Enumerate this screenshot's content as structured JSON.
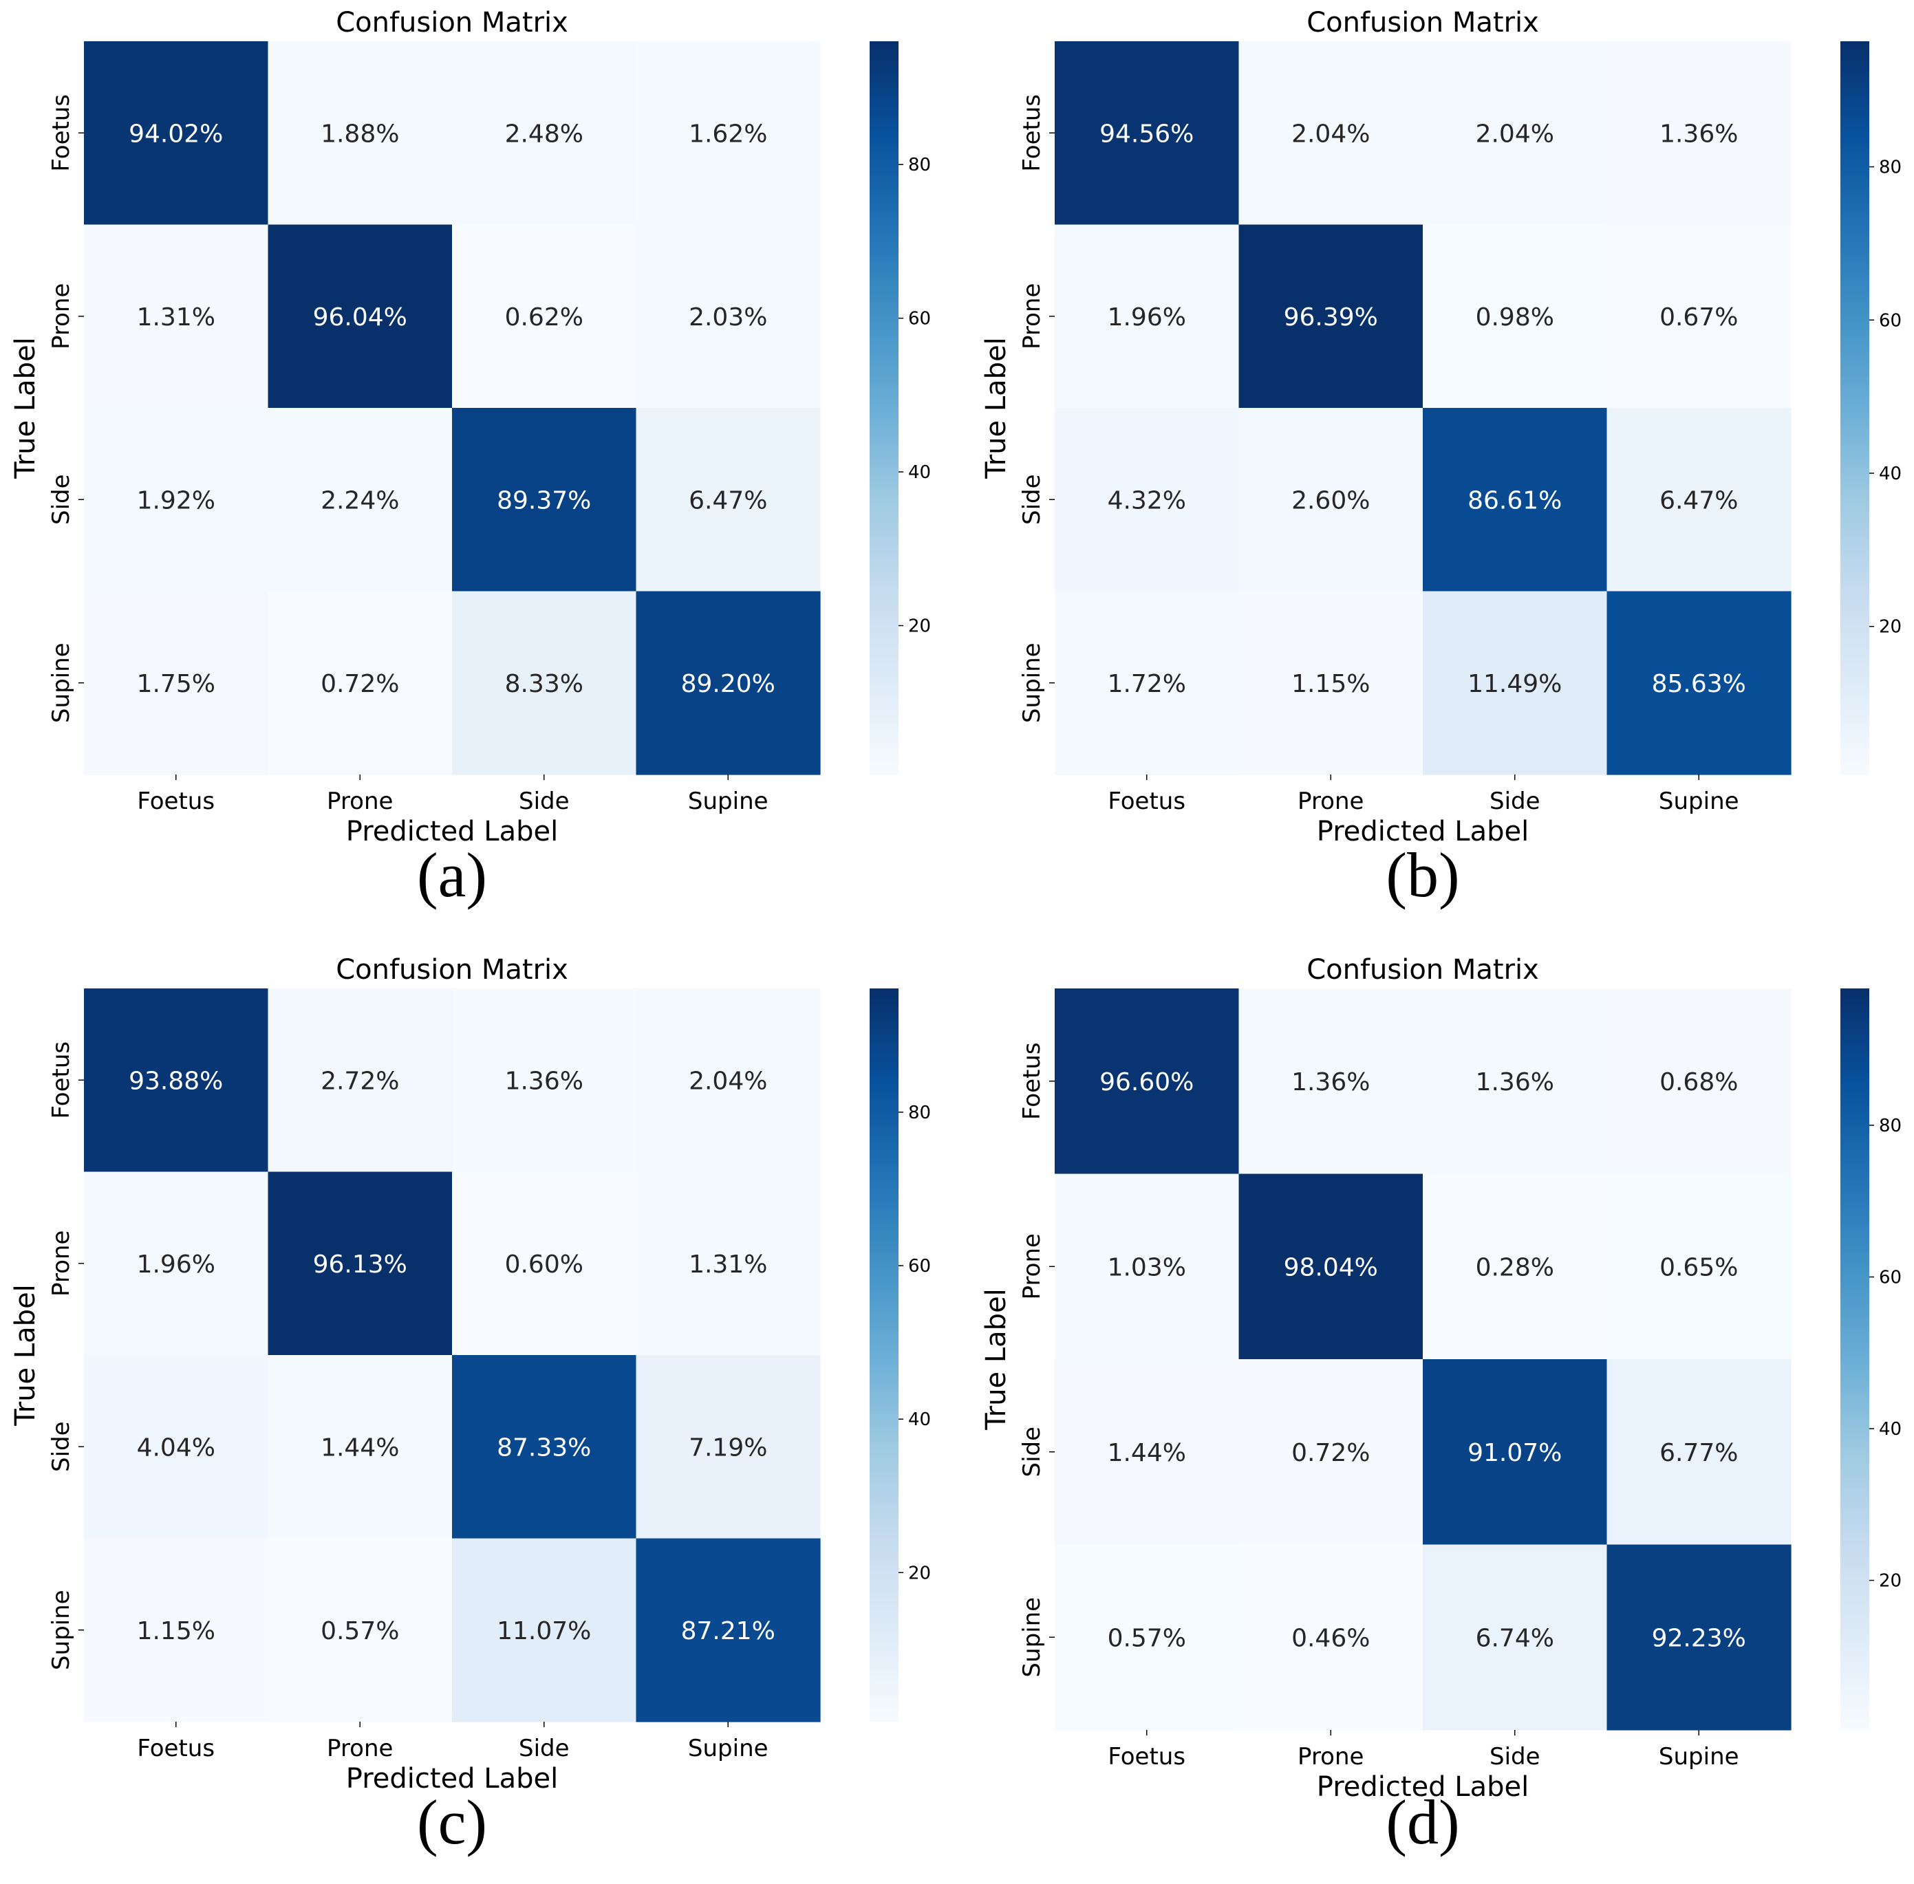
{
  "chart_data": [
    {
      "type": "heatmap",
      "panel": "(a)",
      "title": "Confusion Matrix",
      "xlabel": "Predicted Label",
      "ylabel": "True Label",
      "row_labels": [
        "Foetus",
        "Prone",
        "Side",
        "Supine"
      ],
      "col_labels": [
        "Foetus",
        "Prone",
        "Side",
        "Supine"
      ],
      "values": [
        [
          94.02,
          1.88,
          2.48,
          1.62
        ],
        [
          1.31,
          96.04,
          0.62,
          2.03
        ],
        [
          1.92,
          2.24,
          89.37,
          6.47
        ],
        [
          1.75,
          0.72,
          8.33,
          89.2
        ]
      ],
      "cell_text": [
        [
          "94.02%",
          "1.88%",
          "2.48%",
          "1.62%"
        ],
        [
          "1.31%",
          "96.04%",
          "0.62%",
          "2.03%"
        ],
        [
          "1.92%",
          "2.24%",
          "89.37%",
          "6.47%"
        ],
        [
          "1.75%",
          "0.72%",
          "8.33%",
          "89.20%"
        ]
      ],
      "colorbar": {
        "cmap": "Blues",
        "vmin": 0.62,
        "vmax": 96.04,
        "ticks": [
          20,
          40,
          60,
          80
        ]
      }
    },
    {
      "type": "heatmap",
      "panel": "(b)",
      "title": "Confusion Matrix",
      "xlabel": "Predicted Label",
      "ylabel": "True Label",
      "row_labels": [
        "Foetus",
        "Prone",
        "Side",
        "Supine"
      ],
      "col_labels": [
        "Foetus",
        "Prone",
        "Side",
        "Supine"
      ],
      "values": [
        [
          94.56,
          2.04,
          2.04,
          1.36
        ],
        [
          1.96,
          96.39,
          0.98,
          0.67
        ],
        [
          4.32,
          2.6,
          86.61,
          6.47
        ],
        [
          1.72,
          1.15,
          11.49,
          85.63
        ]
      ],
      "cell_text": [
        [
          "94.56%",
          "2.04%",
          "2.04%",
          "1.36%"
        ],
        [
          "1.96%",
          "96.39%",
          "0.98%",
          "0.67%"
        ],
        [
          "4.32%",
          "2.60%",
          "86.61%",
          "6.47%"
        ],
        [
          "1.72%",
          "1.15%",
          "11.49%",
          "85.63%"
        ]
      ],
      "colorbar": {
        "cmap": "Blues",
        "vmin": 0.67,
        "vmax": 96.39,
        "ticks": [
          20,
          40,
          60,
          80
        ]
      }
    },
    {
      "type": "heatmap",
      "panel": "(c)",
      "title": "Confusion Matrix",
      "xlabel": "Predicted Label",
      "ylabel": "True Label",
      "row_labels": [
        "Foetus",
        "Prone",
        "Side",
        "Supine"
      ],
      "col_labels": [
        "Foetus",
        "Prone",
        "Side",
        "Supine"
      ],
      "values": [
        [
          93.88,
          2.72,
          1.36,
          2.04
        ],
        [
          1.96,
          96.13,
          0.6,
          1.31
        ],
        [
          4.04,
          1.44,
          87.33,
          7.19
        ],
        [
          1.15,
          0.57,
          11.07,
          87.21
        ]
      ],
      "cell_text": [
        [
          "93.88%",
          "2.72%",
          "1.36%",
          "2.04%"
        ],
        [
          "1.96%",
          "96.13%",
          "0.60%",
          "1.31%"
        ],
        [
          "4.04%",
          "1.44%",
          "87.33%",
          "7.19%"
        ],
        [
          "1.15%",
          "0.57%",
          "11.07%",
          "87.21%"
        ]
      ],
      "colorbar": {
        "cmap": "Blues",
        "vmin": 0.57,
        "vmax": 96.13,
        "ticks": [
          20,
          40,
          60,
          80
        ]
      }
    },
    {
      "type": "heatmap",
      "panel": "(d)",
      "title": "Confusion Matrix",
      "xlabel": "Predicted Label",
      "ylabel": "True Label",
      "row_labels": [
        "Foetus",
        "Prone",
        "Side",
        "Supine"
      ],
      "col_labels": [
        "Foetus",
        "Prone",
        "Side",
        "Supine"
      ],
      "values": [
        [
          96.6,
          1.36,
          1.36,
          0.68
        ],
        [
          1.03,
          98.04,
          0.28,
          0.65
        ],
        [
          1.44,
          0.72,
          91.07,
          6.77
        ],
        [
          0.57,
          0.46,
          6.74,
          92.23
        ]
      ],
      "cell_text": [
        [
          "96.60%",
          "1.36%",
          "1.36%",
          "0.68%"
        ],
        [
          "1.03%",
          "98.04%",
          "0.28%",
          "0.65%"
        ],
        [
          "1.44%",
          "0.72%",
          "91.07%",
          "6.77%"
        ],
        [
          "0.57%",
          "0.46%",
          "6.74%",
          "92.23%"
        ]
      ],
      "colorbar": {
        "cmap": "Blues",
        "vmin": 0.28,
        "vmax": 98.04,
        "ticks": [
          20,
          40,
          60,
          80
        ]
      }
    }
  ]
}
